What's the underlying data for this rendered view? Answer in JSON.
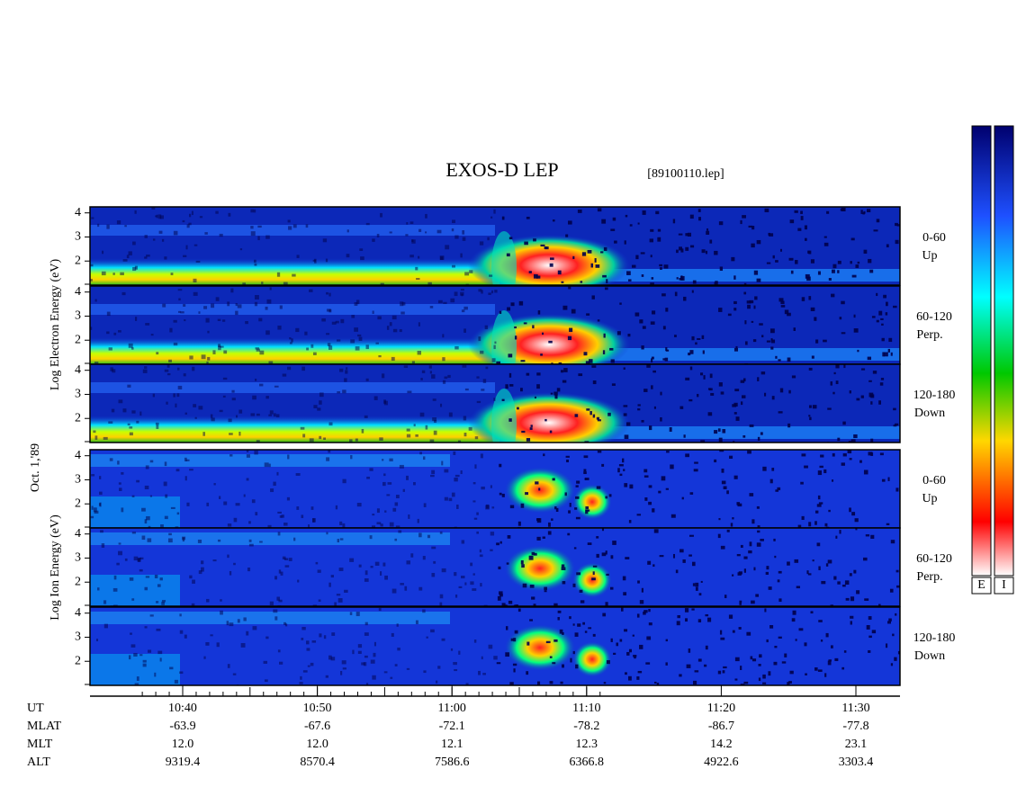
{
  "title": "EXOS-D LEP",
  "file": "[89100110.lep]",
  "electron_axis_label": "Log Electron Energy (eV)",
  "date_label": "Oct. 1,'89",
  "ion_axis_label": "Log Ion Energy (eV)",
  "ylim": [
    1,
    4.25
  ],
  "yticks": [
    2,
    3,
    4
  ],
  "panels": [
    {
      "species": "electron",
      "label": [
        "0-60",
        "Up"
      ]
    },
    {
      "species": "electron",
      "label": [
        "60-120",
        "Perp."
      ]
    },
    {
      "species": "electron",
      "label": [
        "120-180",
        "Down"
      ]
    },
    {
      "species": "ion",
      "label": [
        "0-60",
        "Up"
      ]
    },
    {
      "species": "ion",
      "label": [
        "60-120",
        "Perp."
      ]
    },
    {
      "species": "ion",
      "label": [
        "120-180",
        "Down"
      ]
    }
  ],
  "rows": [
    {
      "name": "UT",
      "values": [
        "10:40",
        "10:50",
        "11:00",
        "11:10",
        "11:20",
        "11:30"
      ]
    },
    {
      "name": "MLAT",
      "values": [
        "-63.9",
        "-67.6",
        "-72.1",
        "-78.2",
        "-86.7",
        "-77.8"
      ]
    },
    {
      "name": "MLT",
      "values": [
        "12.0",
        "12.0",
        "12.1",
        "12.3",
        "14.2",
        "23.1"
      ]
    },
    {
      "name": "ALT",
      "values": [
        "9319.4",
        "8570.4",
        "7586.6",
        "6366.8",
        "4922.6",
        "3303.4"
      ]
    }
  ],
  "colorbars": [
    "E",
    "I"
  ]
}
